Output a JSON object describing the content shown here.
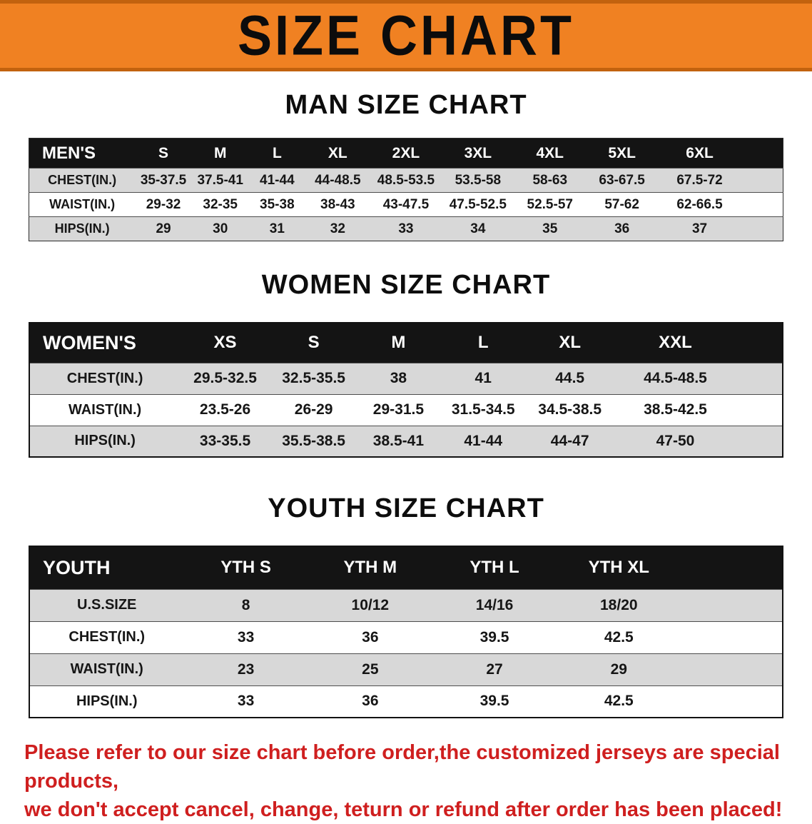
{
  "banner": {
    "title": "SIZE CHART"
  },
  "chart_data": [
    {
      "type": "table",
      "title": "MAN SIZE CHART",
      "columns": [
        "MEN'S",
        "S",
        "M",
        "L",
        "XL",
        "2XL",
        "3XL",
        "4XL",
        "5XL",
        "6XL"
      ],
      "rows": [
        [
          "CHEST(IN.)",
          "35-37.5",
          "37.5-41",
          "41-44",
          "44-48.5",
          "48.5-53.5",
          "53.5-58",
          "58-63",
          "63-67.5",
          "67.5-72"
        ],
        [
          "WAIST(IN.)",
          "29-32",
          "32-35",
          "35-38",
          "38-43",
          "43-47.5",
          "47.5-52.5",
          "52.5-57",
          "57-62",
          "62-66.5"
        ],
        [
          "HIPS(IN.)",
          "29",
          "30",
          "31",
          "32",
          "33",
          "34",
          "35",
          "36",
          "37"
        ]
      ]
    },
    {
      "type": "table",
      "title": "WOMEN SIZE CHART",
      "columns": [
        "WOMEN'S",
        "XS",
        "S",
        "M",
        "L",
        "XL",
        "XXL"
      ],
      "rows": [
        [
          "CHEST(IN.)",
          "29.5-32.5",
          "32.5-35.5",
          "38",
          "41",
          "44.5",
          "44.5-48.5"
        ],
        [
          "WAIST(IN.)",
          "23.5-26",
          "26-29",
          "29-31.5",
          "31.5-34.5",
          "34.5-38.5",
          "38.5-42.5"
        ],
        [
          "HIPS(IN.)",
          "33-35.5",
          "35.5-38.5",
          "38.5-41",
          "41-44",
          "44-47",
          "47-50"
        ]
      ]
    },
    {
      "type": "table",
      "title": "YOUTH SIZE CHART",
      "columns": [
        "YOUTH",
        "YTH S",
        "YTH M",
        "YTH L",
        "YTH XL"
      ],
      "rows": [
        [
          "U.S.SIZE",
          "8",
          "10/12",
          "14/16",
          "18/20"
        ],
        [
          "CHEST(IN.)",
          "33",
          "36",
          "39.5",
          "42.5"
        ],
        [
          "WAIST(IN.)",
          "23",
          "25",
          "27",
          "29"
        ],
        [
          "HIPS(IN.)",
          "33",
          "36",
          "39.5",
          "42.5"
        ]
      ]
    }
  ],
  "footer": {
    "line1": "Please refer to our size chart before order,the customized jerseys are special products,",
    "line2": "we don't accept cancel, change, teturn or refund after order has been placed!"
  },
  "colors": {
    "banner_bg": "#f08122",
    "banner_edge": "#c2620e",
    "header_bg": "#141414",
    "stripe": "#d8d8d8",
    "footer_text": "#cf1f1f"
  }
}
